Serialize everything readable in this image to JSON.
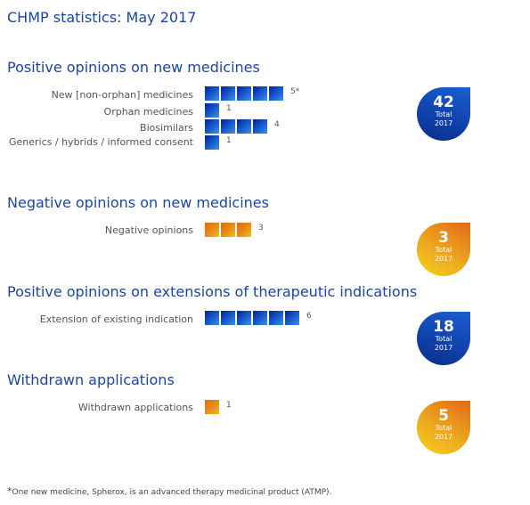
{
  "title": "CHMP statistics: May 2017",
  "colors": {
    "blue": "#1254c8",
    "orange": "#e88a16",
    "heading": "#1a46a8"
  },
  "chart_data": [
    {
      "type": "bar",
      "title": "Positive opinions on new medicines",
      "color": "blue",
      "categories": [
        "New [non-orphan] medicines",
        "Orphan medicines",
        "Biosimilars",
        "Generics / hybrids / informed consent"
      ],
      "values": [
        5,
        1,
        4,
        1
      ],
      "value_labels": [
        "5*",
        "1",
        "4",
        "1"
      ],
      "total": {
        "value": "42",
        "label": "Total",
        "year": "2017"
      }
    },
    {
      "type": "bar",
      "title": "Negative opinions on new medicines",
      "color": "orange",
      "categories": [
        "Negative opinions"
      ],
      "values": [
        3
      ],
      "value_labels": [
        "3"
      ],
      "total": {
        "value": "3",
        "label": "Total",
        "year": "2017"
      }
    },
    {
      "type": "bar",
      "title": "Positive opinions on extensions of therapeutic indications",
      "color": "blue",
      "categories": [
        "Extension of existing indication"
      ],
      "values": [
        6
      ],
      "value_labels": [
        "6"
      ],
      "total": {
        "value": "18",
        "label": "Total",
        "year": "2017"
      }
    },
    {
      "type": "bar",
      "title": "Withdrawn applications",
      "color": "orange",
      "categories": [
        "Withdrawn applications"
      ],
      "values": [
        1
      ],
      "value_labels": [
        "1"
      ],
      "total": {
        "value": "5",
        "label": "Total",
        "year": "2017"
      }
    }
  ],
  "footnote": {
    "star": "*",
    "text": "One new medicine, Spherox, is an advanced therapy medicinal product (ATMP)."
  }
}
